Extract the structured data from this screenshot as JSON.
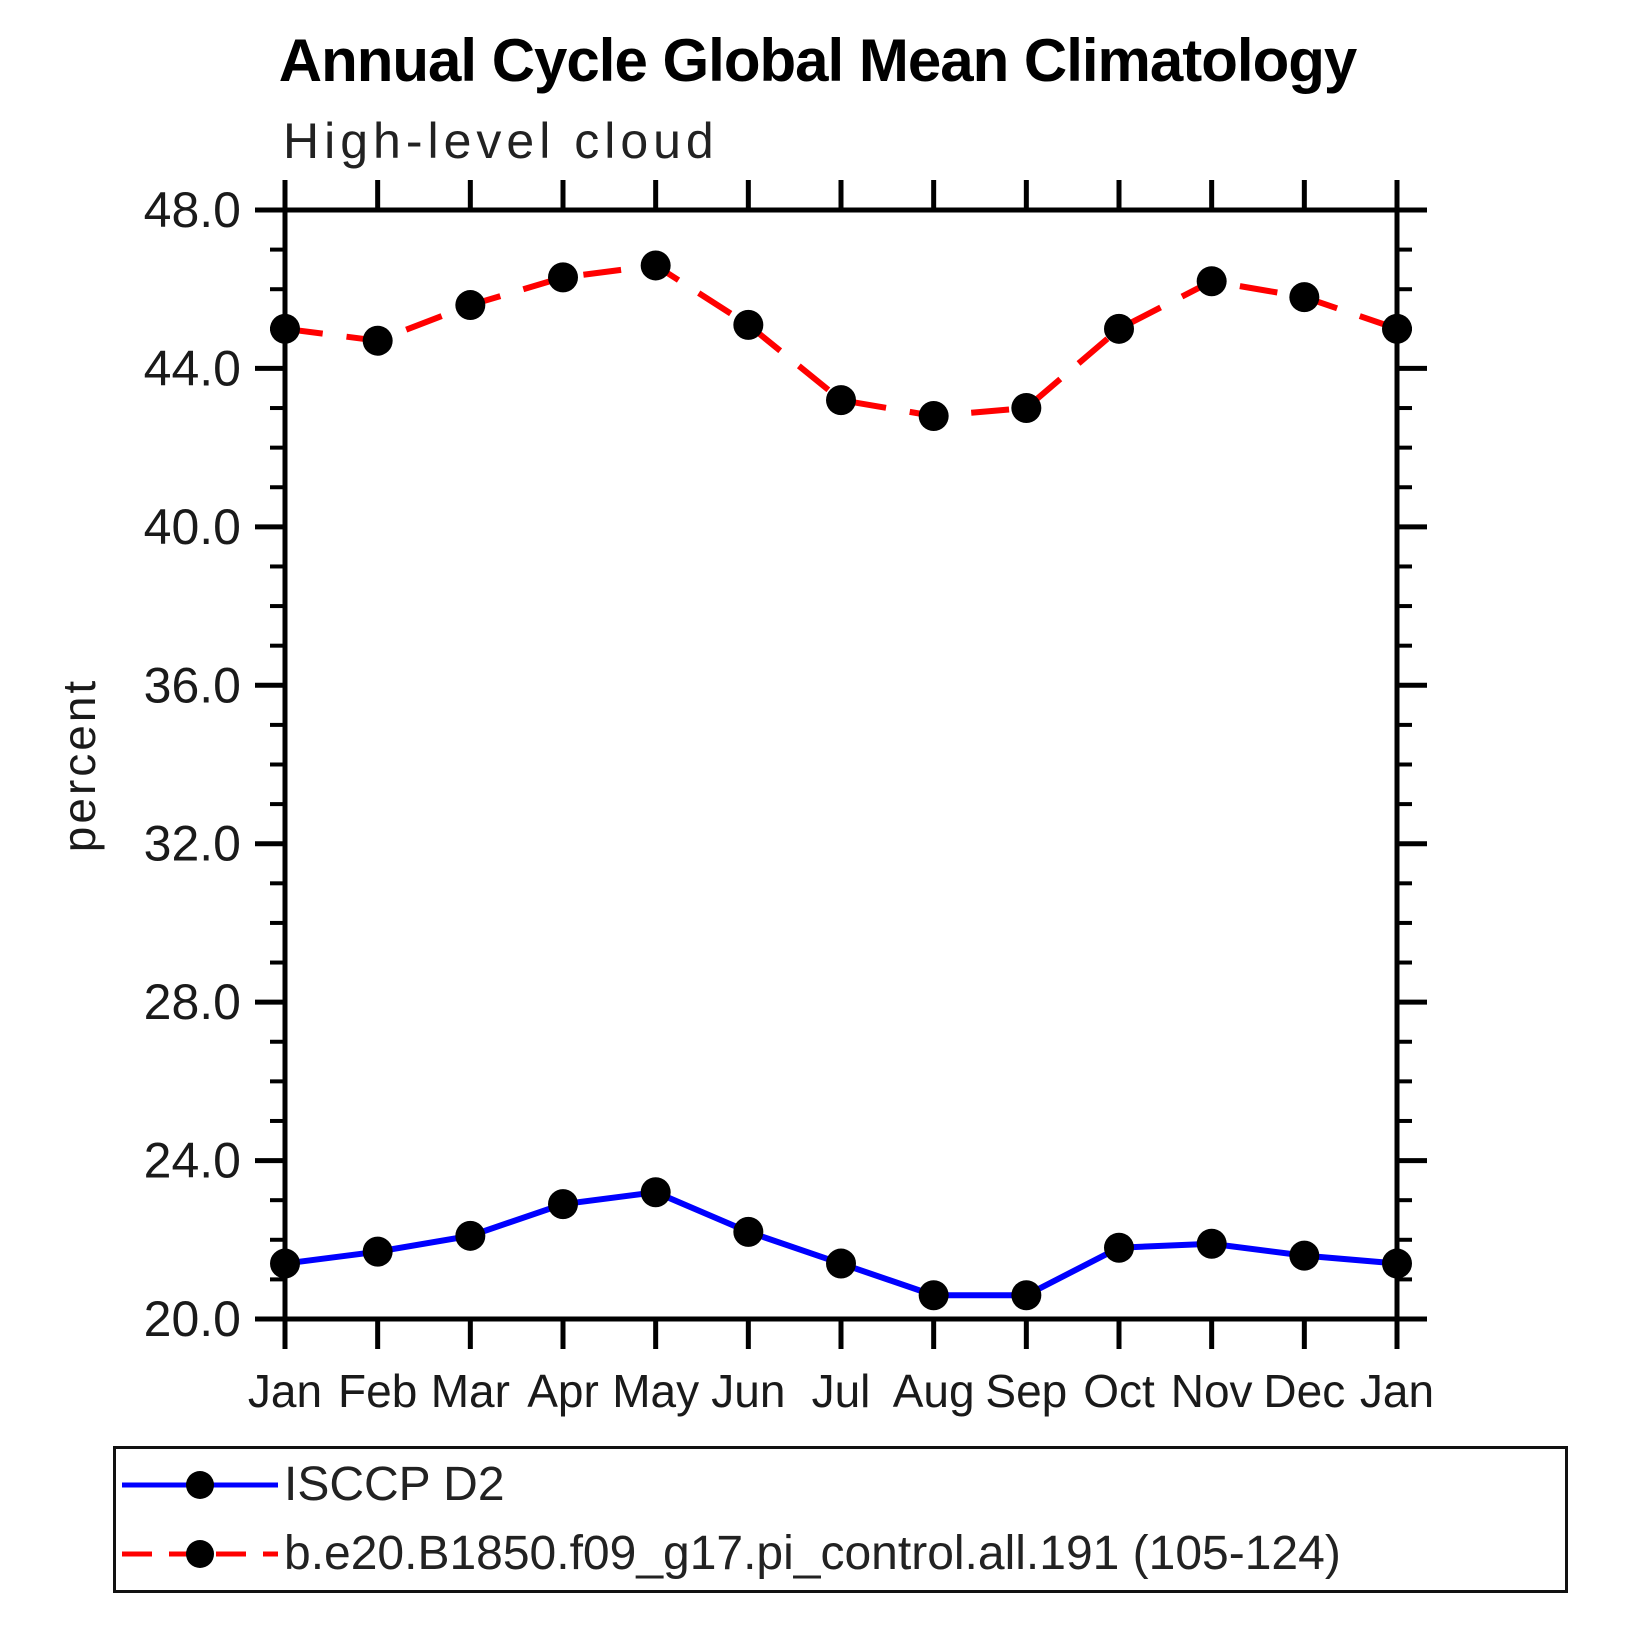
{
  "page": {
    "title": "Annual Cycle Global Mean Climatology",
    "subtitle": "High-level cloud"
  },
  "chart_data": {
    "type": "line",
    "title": "Annual Cycle Global Mean Climatology",
    "subtitle": "High-level cloud",
    "xlabel": "",
    "ylabel": "percent",
    "categories": [
      "Jan",
      "Feb",
      "Mar",
      "Apr",
      "May",
      "Jun",
      "Jul",
      "Aug",
      "Sep",
      "Oct",
      "Nov",
      "Dec",
      "Jan"
    ],
    "ylim": [
      20.0,
      48.0
    ],
    "ytick_major_interval": 4.0,
    "ytick_minor_interval": 1.0,
    "ytick_labels": [
      "20.0",
      "24.0",
      "28.0",
      "32.0",
      "36.0",
      "40.0",
      "44.0",
      "48.0"
    ],
    "grid": false,
    "legend_position": "bottom-left-box",
    "series": [
      {
        "name": "ISCCP D2",
        "color": "#0000ff",
        "line_style": "solid",
        "marker": "filled-circle",
        "marker_color": "#000000",
        "values": [
          21.4,
          21.7,
          22.1,
          22.9,
          23.2,
          22.2,
          21.4,
          20.6,
          20.6,
          21.8,
          21.9,
          21.6,
          21.4
        ]
      },
      {
        "name": "b.e20.B1850.f09_g17.pi_control.all.191 (105-124)",
        "color": "#ff0000",
        "line_style": "dashed",
        "marker": "filled-circle",
        "marker_color": "#000000",
        "values": [
          45.0,
          44.7,
          45.6,
          46.3,
          46.6,
          45.1,
          43.2,
          42.8,
          43.0,
          45.0,
          46.2,
          45.8,
          45.0
        ]
      }
    ]
  }
}
